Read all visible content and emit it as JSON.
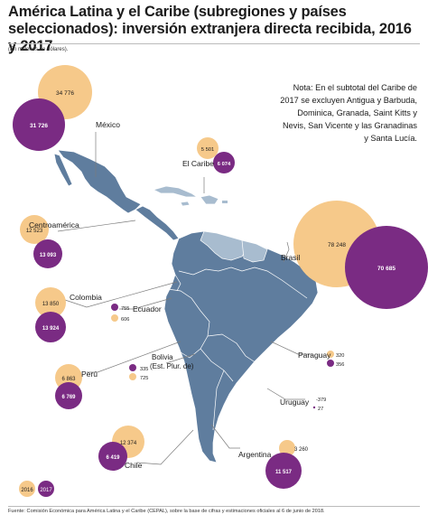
{
  "header": {
    "title": "América Latina y el Caribe (subregiones y países seleccionados): inversión extranjera directa recibida, 2016 y 2017",
    "unit": "(En millones de dólares)."
  },
  "note": "Nota: En el subtotal del Caribe de 2017 se excluyen Antigua y Barbuda, Dominica, Granada, Saint Kitts y Nevis, San Vicente y las Granadinas y Santa Lucía.",
  "source": "Fuente: Comisión Económica para América Latina y el Caribe (CEPAL), sobre la base de cifras y estimaciones oficiales al 6 de junio de 2018.",
  "legend": {
    "y2016": "2016",
    "y2017": "2017"
  },
  "colors": {
    "y2016": "#f6c98a",
    "y2017": "#7a2b83",
    "land": "#5f7d9e",
    "land_light": "#a8bccf",
    "leader": "#7c7c7c"
  },
  "regions": [
    {
      "name": "México",
      "v2016": "34 776",
      "v2017": "31 726"
    },
    {
      "name": "El Caribe",
      "v2016": "5 501",
      "v2017": "6 074"
    },
    {
      "name": "Centroamérica",
      "v2016": "12 523",
      "v2017": "13 093"
    },
    {
      "name": "Colombia",
      "v2016": "13 850",
      "v2017": "13 924"
    },
    {
      "name": "Ecuador",
      "v2016": "606",
      "v2017": "755"
    },
    {
      "name": "Perú",
      "v2016": "6 863",
      "v2017": "6 769"
    },
    {
      "name": "Bolivia (Est. Plur. de)",
      "v2016": "725",
      "v2017": "335"
    },
    {
      "name": "Chile",
      "v2016": "12 374",
      "v2017": "6 419"
    },
    {
      "name": "Argentina",
      "v2016": "3 260",
      "v2017": "11 517"
    },
    {
      "name": "Brasil",
      "v2016": "78 248",
      "v2017": "70 685"
    },
    {
      "name": "Paraguay",
      "v2016": "320",
      "v2017": "356"
    },
    {
      "name": "Uruguay",
      "v2016": "-379",
      "v2017": "27"
    }
  ]
}
